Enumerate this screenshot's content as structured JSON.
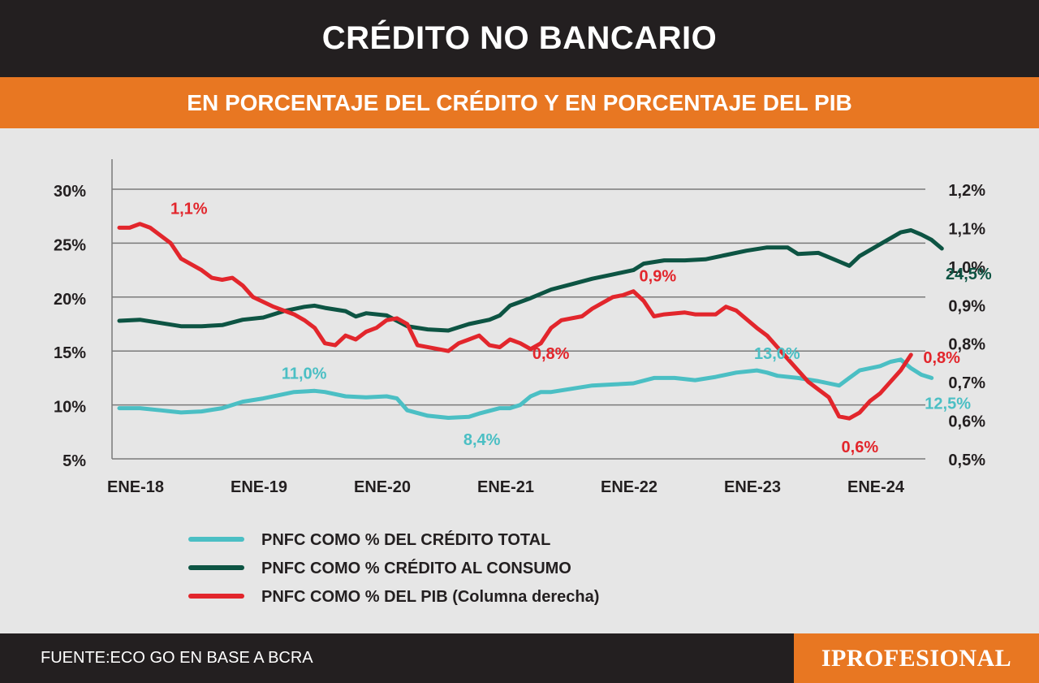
{
  "header": {
    "title": "CRÉDITO NO BANCARIO",
    "subtitle": "EN PORCENTAJE DEL CRÉDITO Y EN PORCENTAJE DEL PIB"
  },
  "footer": {
    "source": "FUENTE:ECO GO EN BASE A BCRA",
    "brand": "IPROFESIONAL"
  },
  "colors": {
    "header_bg": "#231f20",
    "accent": "#e87722",
    "background": "#e6e6e6",
    "credito_total": "#4bbfc4",
    "credito_consumo": "#0d5443",
    "pib": "#e2262c"
  },
  "chart_data": {
    "type": "line",
    "title": "CRÉDITO NO BANCARIO",
    "subtitle": "EN PORCENTAJE DEL CRÉDITO Y EN PORCENTAJE DEL PIB",
    "x_tick_labels": [
      "ENE-18",
      "ENE-19",
      "ENE-20",
      "ENE-21",
      "ENE-22",
      "ENE-23",
      "ENE-24"
    ],
    "x_range_months": [
      0,
      78
    ],
    "y_left": {
      "range": [
        5,
        30
      ],
      "ticks": [
        5,
        10,
        15,
        20,
        25,
        30
      ],
      "tick_labels": [
        "5%",
        "10%",
        "15%",
        "20%",
        "25%",
        "30%"
      ]
    },
    "y_right": {
      "range": [
        0.5,
        1.2
      ],
      "ticks": [
        0.5,
        0.6,
        0.7,
        0.8,
        0.9,
        1.0,
        1.1,
        1.2
      ],
      "tick_labels": [
        "0,5%",
        "0,6%",
        "0,7%",
        "0,8%",
        "0,9%",
        "1,0%",
        "1,1%",
        "1,2%"
      ]
    },
    "grid": "horizontal",
    "legend_position": "bottom-left",
    "series": [
      {
        "name": "PNFC COMO % DEL CRÉDITO TOTAL",
        "axis": "left",
        "color": "#4bbfc4",
        "values": [
          [
            0,
            9.7
          ],
          [
            2,
            9.7
          ],
          [
            4,
            9.5
          ],
          [
            6,
            9.3
          ],
          [
            8,
            9.4
          ],
          [
            10,
            9.7
          ],
          [
            12,
            10.3
          ],
          [
            14,
            10.6
          ],
          [
            16,
            11.0
          ],
          [
            17,
            11.2
          ],
          [
            19,
            11.3
          ],
          [
            20,
            11.2
          ],
          [
            22,
            10.8
          ],
          [
            24,
            10.7
          ],
          [
            26,
            10.8
          ],
          [
            27,
            10.6
          ],
          [
            28,
            9.5
          ],
          [
            30,
            9.0
          ],
          [
            32,
            8.8
          ],
          [
            34,
            8.9
          ],
          [
            35,
            9.2
          ],
          [
            37,
            9.7
          ],
          [
            38,
            9.7
          ],
          [
            39,
            10.0
          ],
          [
            40,
            10.8
          ],
          [
            41,
            11.2
          ],
          [
            42,
            11.2
          ],
          [
            44,
            11.5
          ],
          [
            46,
            11.8
          ],
          [
            48,
            11.9
          ],
          [
            50,
            12.0
          ],
          [
            52,
            12.5
          ],
          [
            54,
            12.5
          ],
          [
            56,
            12.3
          ],
          [
            58,
            12.6
          ],
          [
            60,
            13.0
          ],
          [
            62,
            13.2
          ],
          [
            63,
            13.0
          ],
          [
            64,
            12.7
          ],
          [
            66,
            12.5
          ],
          [
            68,
            12.2
          ],
          [
            70,
            11.8
          ],
          [
            71,
            12.5
          ],
          [
            72,
            13.2
          ],
          [
            74,
            13.6
          ],
          [
            75,
            14.0
          ],
          [
            76,
            14.2
          ],
          [
            77,
            13.4
          ],
          [
            78,
            12.8
          ],
          [
            79,
            12.5
          ]
        ]
      },
      {
        "name": "PNFC COMO % CRÉDITO AL CONSUMO",
        "axis": "left",
        "color": "#0d5443",
        "values": [
          [
            0,
            17.8
          ],
          [
            2,
            17.9
          ],
          [
            4,
            17.6
          ],
          [
            6,
            17.3
          ],
          [
            8,
            17.3
          ],
          [
            10,
            17.4
          ],
          [
            12,
            17.9
          ],
          [
            14,
            18.1
          ],
          [
            16,
            18.7
          ],
          [
            18,
            19.1
          ],
          [
            19,
            19.2
          ],
          [
            20,
            19.0
          ],
          [
            22,
            18.7
          ],
          [
            23,
            18.2
          ],
          [
            24,
            18.5
          ],
          [
            26,
            18.3
          ],
          [
            28,
            17.3
          ],
          [
            30,
            17.0
          ],
          [
            32,
            16.9
          ],
          [
            34,
            17.5
          ],
          [
            36,
            17.9
          ],
          [
            37,
            18.3
          ],
          [
            38,
            19.2
          ],
          [
            40,
            19.9
          ],
          [
            42,
            20.7
          ],
          [
            44,
            21.2
          ],
          [
            46,
            21.7
          ],
          [
            48,
            22.1
          ],
          [
            50,
            22.5
          ],
          [
            51,
            23.1
          ],
          [
            53,
            23.4
          ],
          [
            55,
            23.4
          ],
          [
            57,
            23.5
          ],
          [
            59,
            23.9
          ],
          [
            61,
            24.3
          ],
          [
            63,
            24.6
          ],
          [
            65,
            24.6
          ],
          [
            66,
            24.0
          ],
          [
            68,
            24.1
          ],
          [
            69,
            23.7
          ],
          [
            70,
            23.3
          ],
          [
            71,
            22.9
          ],
          [
            72,
            23.8
          ],
          [
            74,
            24.9
          ],
          [
            76,
            26.0
          ],
          [
            77,
            26.2
          ],
          [
            78,
            25.8
          ],
          [
            79,
            25.3
          ],
          [
            80,
            24.5
          ]
        ]
      },
      {
        "name": "PNFC COMO % DEL PIB (Columna derecha)",
        "axis": "right",
        "color": "#e2262c",
        "values": [
          [
            0,
            1.1
          ],
          [
            1,
            1.1
          ],
          [
            2,
            1.11
          ],
          [
            3,
            1.1
          ],
          [
            5,
            1.06
          ],
          [
            6,
            1.02
          ],
          [
            8,
            0.99
          ],
          [
            9,
            0.97
          ],
          [
            10,
            0.965
          ],
          [
            11,
            0.97
          ],
          [
            12,
            0.95
          ],
          [
            13,
            0.92
          ],
          [
            15,
            0.895
          ],
          [
            17,
            0.875
          ],
          [
            18,
            0.86
          ],
          [
            19,
            0.84
          ],
          [
            20,
            0.8
          ],
          [
            21,
            0.795
          ],
          [
            22,
            0.82
          ],
          [
            23,
            0.81
          ],
          [
            24,
            0.83
          ],
          [
            25,
            0.84
          ],
          [
            26,
            0.86
          ],
          [
            27,
            0.865
          ],
          [
            28,
            0.85
          ],
          [
            29,
            0.795
          ],
          [
            31,
            0.785
          ],
          [
            32,
            0.78
          ],
          [
            33,
            0.8
          ],
          [
            34,
            0.81
          ],
          [
            35,
            0.82
          ],
          [
            36,
            0.795
          ],
          [
            37,
            0.79
          ],
          [
            38,
            0.81
          ],
          [
            39,
            0.8
          ],
          [
            40,
            0.785
          ],
          [
            41,
            0.8
          ],
          [
            42,
            0.84
          ],
          [
            43,
            0.86
          ],
          [
            45,
            0.87
          ],
          [
            46,
            0.89
          ],
          [
            47,
            0.905
          ],
          [
            48,
            0.92
          ],
          [
            49,
            0.925
          ],
          [
            50,
            0.935
          ],
          [
            51,
            0.91
          ],
          [
            52,
            0.87
          ],
          [
            53,
            0.875
          ],
          [
            55,
            0.88
          ],
          [
            56,
            0.875
          ],
          [
            58,
            0.875
          ],
          [
            59,
            0.895
          ],
          [
            60,
            0.885
          ],
          [
            62,
            0.84
          ],
          [
            63,
            0.82
          ],
          [
            64,
            0.79
          ],
          [
            65,
            0.76
          ],
          [
            66,
            0.73
          ],
          [
            67,
            0.7
          ],
          [
            68,
            0.68
          ],
          [
            69,
            0.66
          ],
          [
            70,
            0.61
          ],
          [
            71,
            0.605
          ],
          [
            72,
            0.62
          ],
          [
            73,
            0.65
          ],
          [
            74,
            0.67
          ],
          [
            75,
            0.7
          ],
          [
            76,
            0.73
          ],
          [
            77,
            0.77
          ]
        ]
      }
    ],
    "annotations": [
      {
        "text": "1,1%",
        "series": 2,
        "x": 3,
        "y": 1.11
      },
      {
        "text": "11,0%",
        "series": 0,
        "x": 16,
        "y": 11.2
      },
      {
        "text": "8,4%",
        "series": 0,
        "x": 34,
        "y": 8.9
      },
      {
        "text": "0,8%",
        "series": 2,
        "x": 40,
        "y": 0.785
      },
      {
        "text": "0,9%",
        "series": 2,
        "x": 50,
        "y": 0.935
      },
      {
        "text": "13,0%",
        "series": 0,
        "x": 62,
        "y": 13.2
      },
      {
        "text": "24,5%",
        "series": 1,
        "x": 80,
        "y": 24.5
      },
      {
        "text": "0,8%",
        "series": 2,
        "x": 77,
        "y": 0.77
      },
      {
        "text": "12,5%",
        "series": 0,
        "x": 79,
        "y": 12.5
      },
      {
        "text": "0,6%",
        "series": 2,
        "x": 71,
        "y": 0.605
      }
    ]
  }
}
